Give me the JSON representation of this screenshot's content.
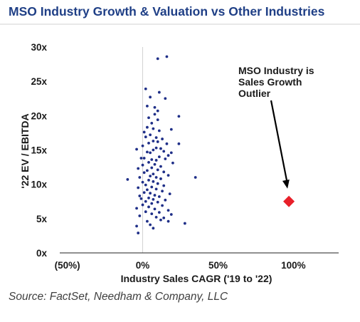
{
  "header": {
    "title": "MSO Industry Growth & Valuation vs Other Industries"
  },
  "footer": {
    "source": "Source: FactSet, Needham & Company, LLC"
  },
  "colors": {
    "title": "#1f3f86",
    "dots": "#1f2f88",
    "highlight": "#e8202a",
    "axis": "#222222",
    "divider": "#d0d0d0"
  },
  "chart_data": {
    "type": "scatter",
    "title": "MSO Industry Growth & Valuation vs Other Industries",
    "xlabel": "Industry Sales CAGR ('19 to '22)",
    "ylabel": "'22 EV / EBITDA",
    "xlim": [
      -0.55,
      1.3
    ],
    "ylim": [
      0,
      30
    ],
    "x_ticks": [
      {
        "value": -0.5,
        "label": "(50%)"
      },
      {
        "value": 0,
        "label": "0%"
      },
      {
        "value": 0.5,
        "label": "50%"
      },
      {
        "value": 1.0,
        "label": "100%"
      }
    ],
    "y_ticks": [
      {
        "value": 0,
        "label": "0x"
      },
      {
        "value": 5,
        "label": "5x"
      },
      {
        "value": 10,
        "label": "10x"
      },
      {
        "value": 15,
        "label": "15x"
      },
      {
        "value": 20,
        "label": "20x"
      },
      {
        "value": 25,
        "label": "25x"
      },
      {
        "value": 30,
        "label": "30x"
      }
    ],
    "grid": false,
    "series": [
      {
        "points": [
          [
            0.1,
            28.3
          ],
          [
            0.16,
            28.6
          ],
          [
            0.02,
            23.9
          ],
          [
            0.11,
            23.4
          ],
          [
            0.05,
            22.7
          ],
          [
            0.15,
            22.5
          ],
          [
            0.03,
            21.4
          ],
          [
            0.08,
            21.2
          ],
          [
            0.1,
            20.7
          ],
          [
            0.08,
            20.2
          ],
          [
            0.24,
            19.9
          ],
          [
            0.04,
            19.7
          ],
          [
            0.1,
            19.4
          ],
          [
            0.06,
            18.9
          ],
          [
            0.03,
            18.3
          ],
          [
            0.07,
            18.1
          ],
          [
            0.19,
            18.0
          ],
          [
            0.11,
            17.8
          ],
          [
            0.01,
            17.6
          ],
          [
            0.05,
            17.2
          ],
          [
            0.02,
            16.9
          ],
          [
            0.09,
            16.8
          ],
          [
            0.13,
            16.6
          ],
          [
            0.07,
            16.3
          ],
          [
            0.1,
            16.2
          ],
          [
            0.04,
            16.0
          ],
          [
            0.16,
            15.9
          ],
          [
            0.24,
            15.9
          ],
          [
            0.0,
            15.6
          ],
          [
            0.09,
            15.3
          ],
          [
            0.12,
            15.2
          ],
          [
            -0.04,
            15.1
          ],
          [
            0.07,
            15.0
          ],
          [
            0.14,
            14.8
          ],
          [
            0.03,
            14.7
          ],
          [
            0.19,
            14.6
          ],
          [
            0.05,
            14.6
          ],
          [
            0.17,
            14.2
          ],
          [
            0.11,
            14.0
          ],
          [
            0.01,
            13.8
          ],
          [
            -0.01,
            13.8
          ],
          [
            0.06,
            13.6
          ],
          [
            0.15,
            13.7
          ],
          [
            0.09,
            13.5
          ],
          [
            0.04,
            13.2
          ],
          [
            0.2,
            13.1
          ],
          [
            0.08,
            12.9
          ],
          [
            0.0,
            12.8
          ],
          [
            0.12,
            12.6
          ],
          [
            0.06,
            12.4
          ],
          [
            -0.03,
            12.3
          ],
          [
            0.1,
            12.1
          ],
          [
            0.03,
            12.0
          ],
          [
            0.14,
            11.8
          ],
          [
            0.01,
            11.7
          ],
          [
            0.07,
            11.5
          ],
          [
            0.17,
            11.3
          ],
          [
            0.05,
            11.2
          ],
          [
            0.09,
            11.0
          ],
          [
            -0.02,
            11.0
          ],
          [
            0.35,
            11.0
          ],
          [
            0.12,
            10.8
          ],
          [
            -0.1,
            10.7
          ],
          [
            0.04,
            10.6
          ],
          [
            0.07,
            10.4
          ],
          [
            0.0,
            10.3
          ],
          [
            0.1,
            10.1
          ],
          [
            0.02,
            9.9
          ],
          [
            0.14,
            9.8
          ],
          [
            0.06,
            9.6
          ],
          [
            -0.03,
            9.5
          ],
          [
            0.09,
            9.3
          ],
          [
            0.03,
            9.2
          ],
          [
            0.13,
            9.0
          ],
          [
            0.01,
            8.8
          ],
          [
            0.05,
            8.7
          ],
          [
            0.18,
            8.6
          ],
          [
            0.08,
            8.4
          ],
          [
            -0.02,
            8.3
          ],
          [
            0.11,
            8.2
          ],
          [
            0.04,
            8.0
          ],
          [
            -0.01,
            7.9
          ],
          [
            0.07,
            7.8
          ],
          [
            0.15,
            7.7
          ],
          [
            0.02,
            7.5
          ],
          [
            0.1,
            7.4
          ],
          [
            0.06,
            7.2
          ],
          [
            0.0,
            7.0
          ],
          [
            0.13,
            6.9
          ],
          [
            0.04,
            6.7
          ],
          [
            -0.04,
            6.5
          ],
          [
            0.08,
            6.4
          ],
          [
            0.17,
            6.2
          ],
          [
            0.02,
            6.0
          ],
          [
            0.11,
            5.9
          ],
          [
            0.06,
            5.7
          ],
          [
            0.19,
            5.6
          ],
          [
            -0.02,
            5.4
          ],
          [
            0.09,
            5.2
          ],
          [
            0.14,
            5.1
          ],
          [
            0.12,
            4.8
          ],
          [
            0.17,
            4.6
          ],
          [
            0.03,
            4.6
          ],
          [
            0.28,
            4.3
          ],
          [
            0.05,
            4.1
          ],
          [
            -0.04,
            3.9
          ],
          [
            0.07,
            3.6
          ],
          [
            -0.03,
            2.9
          ]
        ]
      },
      {
        "points": [
          [
            0.97,
            7.5
          ]
        ]
      }
    ],
    "annotations": [
      {
        "lines": [
          "MSO Industry is",
          "Sales Growth",
          "Outlier"
        ],
        "points_to": [
          0.97,
          7.5
        ]
      }
    ]
  }
}
